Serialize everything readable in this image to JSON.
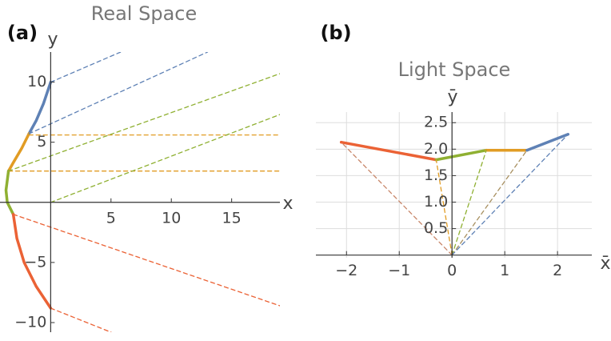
{
  "chart_data": [
    {
      "type": "line",
      "label": "(a)",
      "title": "Real Space",
      "xlabel": "x",
      "ylabel": "y",
      "xlim": [
        -4.2,
        19
      ],
      "ylim": [
        -10.8,
        12.5
      ],
      "grid": false,
      "xticks": [
        5,
        10,
        15
      ],
      "yticks": [
        {
          "value": -10,
          "label": "−10"
        },
        {
          "value": -5,
          "label": "−5"
        },
        5,
        10
      ],
      "series": [
        {
          "color": "#5e81b5",
          "x": [
            0,
            -0.6,
            -1.2,
            -1.8
          ],
          "values": [
            10,
            8.2,
            6.8,
            5.7
          ]
        },
        {
          "color": "#e19c24",
          "x": [
            -1.8,
            -2.4,
            -3.1,
            -3.5
          ],
          "values": [
            5.7,
            4.5,
            3.3,
            2.6
          ]
        },
        {
          "color": "#8fb032",
          "x": [
            -3.5,
            -3.7,
            -3.6,
            -3.1
          ],
          "values": [
            2.6,
            1,
            0,
            -1
          ]
        },
        {
          "color": "#eb6235",
          "x": [
            -3.1,
            -2.8,
            -2.2,
            -1.2,
            0
          ],
          "values": [
            -1,
            -3,
            -5,
            -7,
            -8.8
          ]
        },
        {
          "color": "#5e81b5",
          "dashed": true,
          "x": [
            0,
            5.8
          ],
          "values": [
            10,
            12.5
          ]
        },
        {
          "color": "#5e81b5",
          "dashed": true,
          "x": [
            -1.8,
            13
          ],
          "values": [
            5.7,
            12.5
          ]
        },
        {
          "color": "#e19c24",
          "dashed": true,
          "x": [
            -1.8,
            19
          ],
          "values": [
            5.6,
            5.6
          ]
        },
        {
          "color": "#e19c24",
          "dashed": true,
          "x": [
            -3.5,
            19
          ],
          "values": [
            2.6,
            2.6
          ]
        },
        {
          "color": "#8fb032",
          "dashed": true,
          "x": [
            -3.5,
            19
          ],
          "values": [
            2.6,
            10.7
          ]
        },
        {
          "color": "#8fb032",
          "dashed": true,
          "x": [
            0,
            19
          ],
          "values": [
            0,
            7.3
          ]
        },
        {
          "color": "#eb6235",
          "dashed": true,
          "x": [
            -3.1,
            19
          ],
          "values": [
            -1,
            -8.6
          ]
        },
        {
          "color": "#eb6235",
          "dashed": true,
          "x": [
            0,
            5
          ],
          "values": [
            -8.8,
            -10.8
          ]
        }
      ]
    },
    {
      "type": "line",
      "label": "(b)",
      "title": "Light Space",
      "xlabel": "x̄",
      "ylabel": "ȳ",
      "xlim": [
        -2.58,
        2.65
      ],
      "ylim": [
        -0.05,
        2.7
      ],
      "grid": true,
      "xticks": [
        {
          "value": -2,
          "label": "−2"
        },
        {
          "value": -1,
          "label": "−1"
        },
        0,
        1,
        2
      ],
      "yticks": [
        0.5,
        {
          "value": 1,
          "label": "1.0"
        },
        1.5,
        {
          "value": 2,
          "label": "2.0"
        },
        2.5
      ],
      "series": [
        {
          "color": "#eb6235",
          "x": [
            -2.1,
            -0.3
          ],
          "values": [
            2.13,
            1.8
          ]
        },
        {
          "color": "#8fb032",
          "x": [
            -0.3,
            0.65
          ],
          "values": [
            1.8,
            1.98
          ]
        },
        {
          "color": "#e19c24",
          "x": [
            0.65,
            1.42
          ],
          "values": [
            1.98,
            1.98
          ]
        },
        {
          "color": "#5e81b5",
          "x": [
            1.42,
            2.2
          ],
          "values": [
            1.98,
            2.28
          ]
        },
        {
          "color": "#c8876a",
          "dashed": true,
          "x": [
            0,
            -2.1
          ],
          "values": [
            0,
            2.13
          ]
        },
        {
          "color": "#e19c24",
          "dashed": true,
          "x": [
            0,
            -0.3
          ],
          "values": [
            0,
            1.8
          ]
        },
        {
          "color": "#8fb032",
          "dashed": true,
          "x": [
            0,
            0.65
          ],
          "values": [
            0,
            1.98
          ]
        },
        {
          "color": "#a89060",
          "dashed": true,
          "x": [
            0,
            1.42
          ],
          "values": [
            0,
            1.98
          ]
        },
        {
          "color": "#5e81b5",
          "dashed": true,
          "x": [
            0,
            2.2
          ],
          "values": [
            0,
            2.28
          ]
        }
      ]
    }
  ]
}
